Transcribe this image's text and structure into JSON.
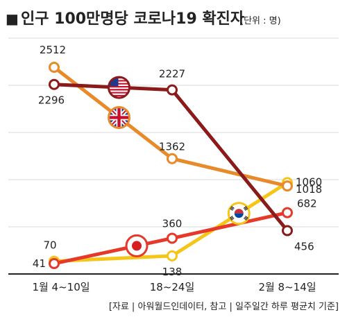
{
  "title": "인구 100만명당 코로나19 확진자",
  "title_bullet": "■",
  "unit": "(단위 : 명)",
  "source": "[자료 | 아워월드인데이터, 참고 | 일주일간 하루 평균치 기준]",
  "chart_data": {
    "type": "line",
    "categories": [
      "1월 4~10일",
      "18~24일",
      "2월 8~14일"
    ],
    "series": [
      {
        "key": "usa",
        "color": "#8b1a1a",
        "values": [
          2296,
          2227,
          456
        ],
        "labels": [
          "2296",
          "2227",
          "456"
        ],
        "flag": "usa-flag-icon"
      },
      {
        "key": "uk",
        "color": "#e8892a",
        "values": [
          2512,
          1362,
          1018
        ],
        "labels": [
          "2512",
          "1362",
          "1018"
        ],
        "flag": "uk-flag-icon"
      },
      {
        "key": "japan",
        "color": "#e53a2a",
        "values": [
          41,
          360,
          682
        ],
        "labels": [
          "41",
          "360",
          "682"
        ],
        "flag": "japan-flag-icon"
      },
      {
        "key": "korea",
        "color": "#f5c518",
        "values": [
          70,
          138,
          1060
        ],
        "labels": [
          "70",
          "138",
          "1060"
        ],
        "flag": "korea-flag-icon"
      }
    ],
    "grid": true,
    "legend": "flag icons on lines"
  }
}
